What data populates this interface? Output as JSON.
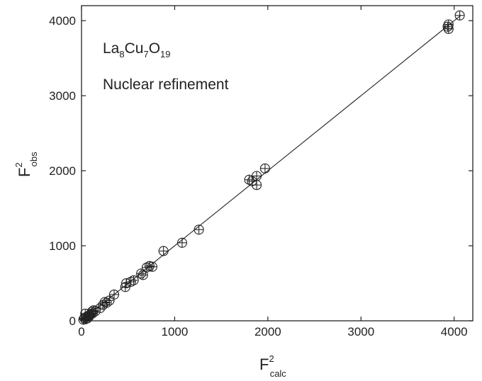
{
  "chart_data": {
    "type": "scatter",
    "title": "",
    "xlabel": "F",
    "xlabel_sup": "2",
    "xlabel_sub": "calc",
    "ylabel": "F",
    "ylabel_sup": "2",
    "ylabel_sub": "obs",
    "xlim": [
      0,
      4200
    ],
    "ylim": [
      0,
      4200
    ],
    "x_ticks": [
      0,
      1000,
      2000,
      3000,
      4000
    ],
    "y_ticks": [
      0,
      1000,
      2000,
      3000,
      4000
    ],
    "grid": false,
    "annotations": {
      "formula": [
        {
          "text": "La",
          "sub": false
        },
        {
          "text": "8",
          "sub": true
        },
        {
          "text": "Cu",
          "sub": false
        },
        {
          "text": "7",
          "sub": true
        },
        {
          "text": "O",
          "sub": false
        },
        {
          "text": "19",
          "sub": true
        }
      ],
      "note": "Nuclear refinement"
    },
    "fit_line": {
      "x": [
        0,
        4070
      ],
      "y": [
        0,
        4070
      ]
    },
    "series": [
      {
        "marker": "circle-with-errorbar",
        "points": [
          {
            "x": 20,
            "y": 15
          },
          {
            "x": 30,
            "y": 35
          },
          {
            "x": 40,
            "y": 20
          },
          {
            "x": 50,
            "y": 50
          },
          {
            "x": 60,
            "y": 30
          },
          {
            "x": 70,
            "y": 65
          },
          {
            "x": 80,
            "y": 55
          },
          {
            "x": 90,
            "y": 80
          },
          {
            "x": 100,
            "y": 90
          },
          {
            "x": 110,
            "y": 120
          },
          {
            "x": 120,
            "y": 100
          },
          {
            "x": 130,
            "y": 140
          },
          {
            "x": 150,
            "y": 130
          },
          {
            "x": 40,
            "y": 95
          },
          {
            "x": 200,
            "y": 170
          },
          {
            "x": 230,
            "y": 210
          },
          {
            "x": 250,
            "y": 250
          },
          {
            "x": 270,
            "y": 240
          },
          {
            "x": 300,
            "y": 270
          },
          {
            "x": 350,
            "y": 350
          },
          {
            "x": 470,
            "y": 450
          },
          {
            "x": 480,
            "y": 500
          },
          {
            "x": 530,
            "y": 520
          },
          {
            "x": 560,
            "y": 540
          },
          {
            "x": 640,
            "y": 630
          },
          {
            "x": 660,
            "y": 610
          },
          {
            "x": 700,
            "y": 710
          },
          {
            "x": 730,
            "y": 730
          },
          {
            "x": 760,
            "y": 720
          },
          {
            "x": 880,
            "y": 930
          },
          {
            "x": 1080,
            "y": 1040
          },
          {
            "x": 1260,
            "y": 1215
          },
          {
            "x": 1800,
            "y": 1880
          },
          {
            "x": 1830,
            "y": 1860
          },
          {
            "x": 1880,
            "y": 1930
          },
          {
            "x": 1880,
            "y": 1810
          },
          {
            "x": 1970,
            "y": 2030
          },
          {
            "x": 3930,
            "y": 3920
          },
          {
            "x": 3940,
            "y": 3890
          },
          {
            "x": 3940,
            "y": 3950
          },
          {
            "x": 4060,
            "y": 4070
          }
        ]
      }
    ]
  }
}
